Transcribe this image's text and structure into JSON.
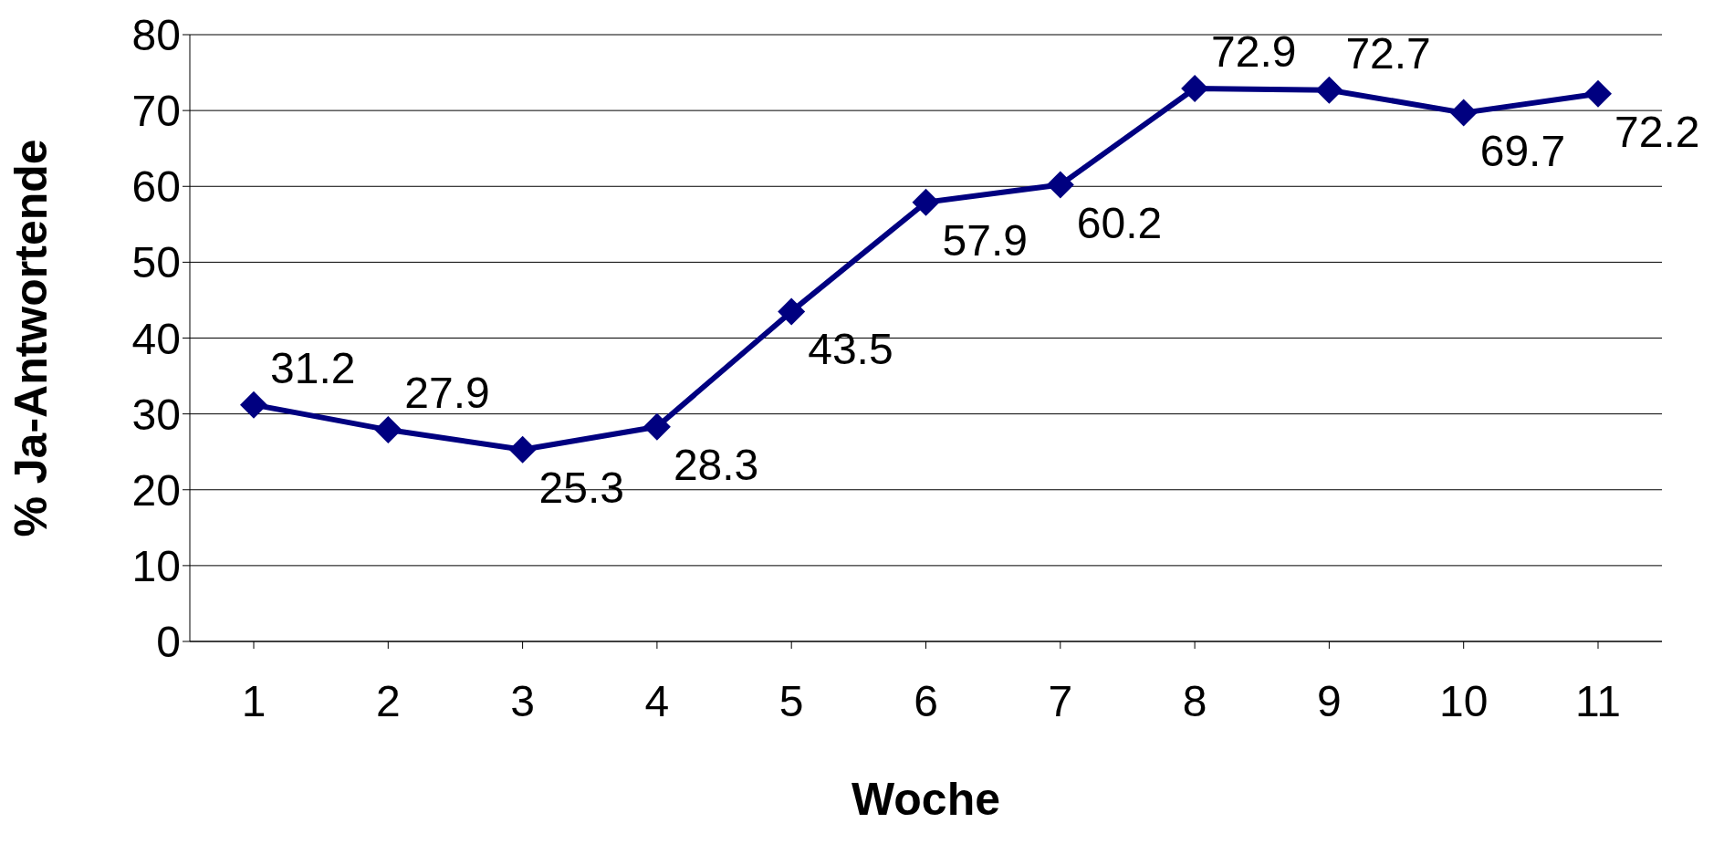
{
  "chart_data": {
    "type": "line",
    "xlabel": "Woche",
    "ylabel": "% Ja-Antwortende",
    "categories": [
      "1",
      "2",
      "3",
      "4",
      "5",
      "6",
      "7",
      "8",
      "9",
      "10",
      "11"
    ],
    "series": [
      {
        "color": "#000080",
        "values": [
          31.2,
          27.9,
          25.3,
          28.3,
          43.5,
          57.9,
          60.2,
          72.9,
          72.7,
          69.7,
          72.2
        ]
      }
    ],
    "ylim": [
      0,
      80
    ],
    "yticks": [
      0,
      10,
      20,
      30,
      40,
      50,
      60,
      70,
      80
    ],
    "grid": "y",
    "marker": "diamond",
    "line_style": "solid",
    "data_labels": true,
    "legend": false
  }
}
